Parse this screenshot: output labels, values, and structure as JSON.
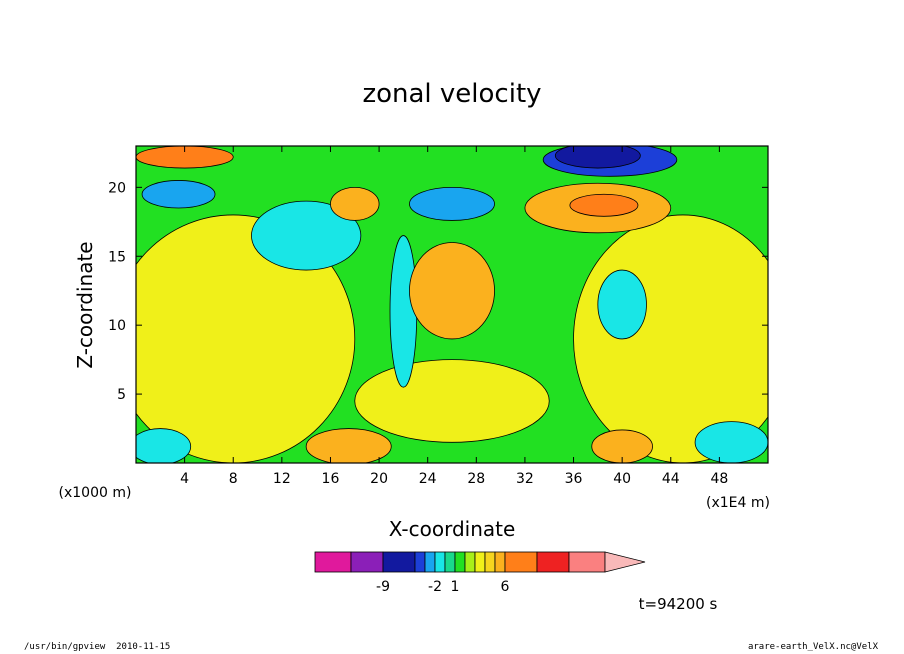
{
  "footer": {
    "left_path": "/usr/bin/gpview",
    "left_date": "2010-11-15",
    "right": "arare-earth_VelX.nc@VelX"
  },
  "chart_data": {
    "type": "heatmap",
    "title": "zonal velocity",
    "xlabel": "X-coordinate",
    "ylabel": "Z-coordinate",
    "x_unit_left": "(x1000 m)",
    "x_unit_right": "(x1E4 m)",
    "xlim": [
      0,
      52
    ],
    "ylim": [
      0,
      23
    ],
    "xticks": [
      "4",
      "8",
      "12",
      "16",
      "20",
      "24",
      "28",
      "32",
      "36",
      "40",
      "44",
      "48"
    ],
    "yticks": [
      "5",
      "10",
      "15",
      "20"
    ],
    "time_label": "t=94200 s",
    "colorbar": {
      "colors": [
        "#e0199c",
        "#8b1fb8",
        "#12199f",
        "#1c3fd8",
        "#19a5ef",
        "#19e6e6",
        "#19d98c",
        "#22e022",
        "#a8ef19",
        "#f0f019",
        "#f6d51e",
        "#fbb11e",
        "#ff7f19",
        "#ee2222",
        "#fa8080",
        "#f9b9b9"
      ],
      "tick_labels": [
        "-9",
        "-2",
        "1",
        "6"
      ]
    },
    "field_regions": [
      {
        "level": "lt-9",
        "x": 38,
        "z": 22.3,
        "rx": 3.5,
        "rz": 0.9
      },
      {
        "level": "-5",
        "x": 39,
        "z": 22.0,
        "rx": 5.5,
        "rz": 1.2
      },
      {
        "level": "-3",
        "x": 3.5,
        "z": 19.5,
        "rx": 3,
        "rz": 1.0
      },
      {
        "level": "-3",
        "x": 26,
        "z": 18.8,
        "rx": 3.5,
        "rz": 1.2
      },
      {
        "level": "-1",
        "x": 14,
        "z": 16.5,
        "rx": 4.5,
        "rz": 2.5
      },
      {
        "level": "-1",
        "x": 40,
        "z": 11.5,
        "rx": 2,
        "rz": 2.5
      },
      {
        "level": "-1",
        "x": 2,
        "z": 1.2,
        "rx": 2.5,
        "rz": 1.3
      },
      {
        "level": "-1",
        "x": 49,
        "z": 1.5,
        "rx": 3,
        "rz": 1.5
      },
      {
        "level": "-1",
        "x": 22,
        "z": 11,
        "rx": 1.1,
        "rz": 5.5
      },
      {
        "level": "2",
        "x": 26,
        "z": 12.5,
        "rx": 3.5,
        "rz": 3.5
      },
      {
        "level": "2",
        "x": 38,
        "z": 18.5,
        "rx": 6,
        "rz": 1.8
      },
      {
        "level": "4",
        "x": 38.5,
        "z": 18.7,
        "rx": 2.8,
        "rz": 0.8
      },
      {
        "level": "2",
        "x": 18,
        "z": 18.8,
        "rx": 2,
        "rz": 1.2
      },
      {
        "level": "4",
        "x": 4,
        "z": 22.2,
        "rx": 4,
        "rz": 0.8
      },
      {
        "level": "2",
        "x": 17.5,
        "z": 1.2,
        "rx": 3.5,
        "rz": 1.3
      },
      {
        "level": "2",
        "x": 40,
        "z": 1.2,
        "rx": 2.5,
        "rz": 1.2
      },
      {
        "level": "0.5",
        "x": 8,
        "z": 9,
        "rx": 10,
        "rz": 9
      },
      {
        "level": "0.5",
        "x": 45,
        "z": 9,
        "rx": 9,
        "rz": 9
      },
      {
        "level": "0.5",
        "x": 26,
        "z": 4.5,
        "rx": 8,
        "rz": 3
      }
    ]
  }
}
